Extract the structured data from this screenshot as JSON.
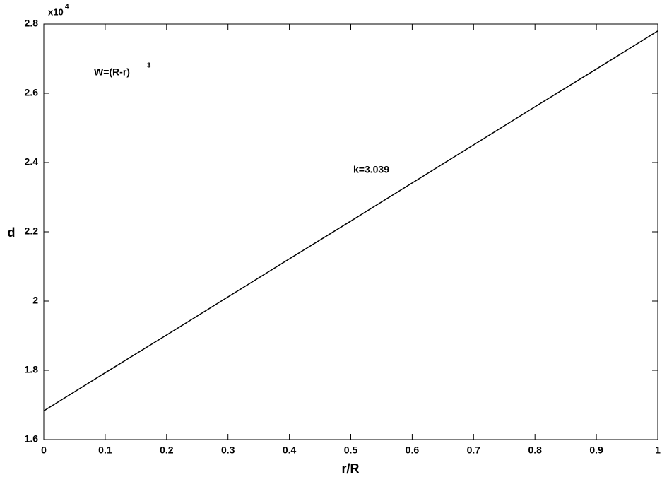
{
  "chart_data": {
    "type": "line",
    "x_label": "r/R",
    "y_label": "d",
    "y_multiplier": {
      "base": "x10",
      "exponent": "4"
    },
    "annotations": [
      {
        "text": "W=(R-r)",
        "superscript": "3"
      },
      {
        "text": "k=3.039"
      }
    ],
    "x": [
      0,
      0.1,
      0.2,
      0.3,
      0.4,
      0.5,
      0.6,
      0.7,
      0.8,
      0.9,
      1
    ],
    "series": [
      {
        "color": "#000000",
        "values": [
          1.683,
          1.793,
          1.902,
          2.012,
          2.122,
          2.231,
          2.341,
          2.451,
          2.561,
          2.67,
          2.78
        ]
      }
    ],
    "xlim": [
      0,
      1
    ],
    "xticks": [
      0,
      0.1,
      0.2,
      0.3,
      0.4,
      0.5,
      0.6,
      0.7,
      0.8,
      0.9,
      1
    ],
    "ylim": [
      1.6,
      2.8
    ],
    "yticks": [
      1.6,
      1.8,
      2,
      2.2,
      2.4,
      2.6,
      2.8
    ],
    "grid": false
  }
}
